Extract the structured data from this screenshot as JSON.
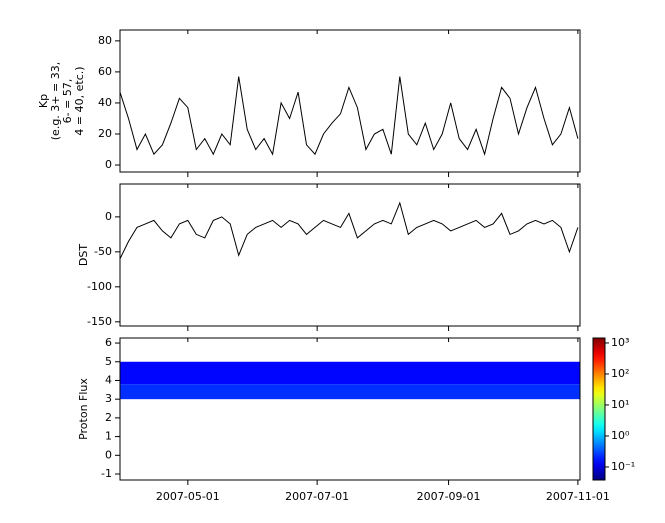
{
  "chart_data": [
    {
      "type": "line",
      "ylabel": [
        "Kp",
        "(e.g. 3+ = 33,",
        "6- = 57,",
        "4 = 40, etc.)"
      ],
      "x": [
        "2007-03-30",
        "2007-04-03",
        "2007-04-07",
        "2007-04-11",
        "2007-04-15",
        "2007-04-19",
        "2007-04-23",
        "2007-04-27",
        "2007-05-01",
        "2007-05-05",
        "2007-05-09",
        "2007-05-13",
        "2007-05-17",
        "2007-05-21",
        "2007-05-25",
        "2007-05-29",
        "2007-06-02",
        "2007-06-06",
        "2007-06-10",
        "2007-06-14",
        "2007-06-18",
        "2007-06-22",
        "2007-06-26",
        "2007-06-30",
        "2007-07-04",
        "2007-07-08",
        "2007-07-12",
        "2007-07-16",
        "2007-07-20",
        "2007-07-24",
        "2007-07-28",
        "2007-08-01",
        "2007-08-05",
        "2007-08-09",
        "2007-08-13",
        "2007-08-17",
        "2007-08-21",
        "2007-08-25",
        "2007-08-29",
        "2007-09-02",
        "2007-09-06",
        "2007-09-10",
        "2007-09-14",
        "2007-09-18",
        "2007-09-22",
        "2007-09-26",
        "2007-09-30",
        "2007-10-04",
        "2007-10-08",
        "2007-10-12",
        "2007-10-16",
        "2007-10-20",
        "2007-10-24",
        "2007-10-28",
        "2007-11-01"
      ],
      "values": [
        47,
        30,
        10,
        20,
        7,
        13,
        27,
        43,
        37,
        10,
        17,
        7,
        20,
        13,
        57,
        23,
        10,
        17,
        7,
        40,
        30,
        47,
        13,
        7,
        20,
        27,
        33,
        50,
        37,
        10,
        20,
        23,
        7,
        57,
        20,
        13,
        27,
        10,
        20,
        40,
        17,
        10,
        23,
        7,
        30,
        50,
        43,
        20,
        37,
        50,
        30,
        13,
        20,
        37,
        17
      ],
      "color": "#000000",
      "xlim": [
        "2007-03-30",
        "2007-11-02"
      ],
      "ylim": [
        -4.5,
        87
      ],
      "yticks": [
        0,
        20,
        40,
        60,
        80
      ]
    },
    {
      "type": "line",
      "ylabel": [
        "DST"
      ],
      "x": [
        "2007-03-30",
        "2007-04-03",
        "2007-04-07",
        "2007-04-11",
        "2007-04-15",
        "2007-04-19",
        "2007-04-23",
        "2007-04-27",
        "2007-05-01",
        "2007-05-05",
        "2007-05-09",
        "2007-05-13",
        "2007-05-17",
        "2007-05-21",
        "2007-05-25",
        "2007-05-29",
        "2007-06-02",
        "2007-06-06",
        "2007-06-10",
        "2007-06-14",
        "2007-06-18",
        "2007-06-22",
        "2007-06-26",
        "2007-06-30",
        "2007-07-04",
        "2007-07-08",
        "2007-07-12",
        "2007-07-16",
        "2007-07-20",
        "2007-07-24",
        "2007-07-28",
        "2007-08-01",
        "2007-08-05",
        "2007-08-09",
        "2007-08-13",
        "2007-08-17",
        "2007-08-21",
        "2007-08-25",
        "2007-08-29",
        "2007-09-02",
        "2007-09-06",
        "2007-09-10",
        "2007-09-14",
        "2007-09-18",
        "2007-09-22",
        "2007-09-26",
        "2007-09-30",
        "2007-10-04",
        "2007-10-08",
        "2007-10-12",
        "2007-10-16",
        "2007-10-20",
        "2007-10-24",
        "2007-10-28",
        "2007-11-01"
      ],
      "values": [
        -60,
        -35,
        -15,
        -10,
        -5,
        -20,
        -30,
        -10,
        -5,
        -25,
        -30,
        -5,
        0,
        -10,
        -55,
        -25,
        -15,
        -10,
        -5,
        -15,
        -5,
        -10,
        -25,
        -15,
        -5,
        -10,
        -15,
        5,
        -30,
        -20,
        -10,
        -5,
        -10,
        20,
        -25,
        -15,
        -10,
        -5,
        -10,
        -20,
        -15,
        -10,
        -5,
        -15,
        -10,
        5,
        -25,
        -20,
        -10,
        -5,
        -10,
        -5,
        -15,
        -50,
        -15
      ],
      "color": "#000000",
      "xlim": [
        "2007-03-30",
        "2007-11-02"
      ],
      "ylim": [
        -156,
        47
      ],
      "yticks": [
        0,
        -50,
        -100,
        -150
      ]
    },
    {
      "type": "heatmap",
      "ylabel": [
        "Proton Flux"
      ],
      "xbins": [
        "2007-03-30",
        "2007-11-02"
      ],
      "ybins": [
        3,
        3.8,
        5
      ],
      "values": [
        [
          0.23
        ],
        [
          0.15
        ]
      ],
      "colormap": "jet",
      "log_color": true,
      "clim": [
        0.038,
        1445
      ],
      "cticks": [
        {
          "value": 0.1,
          "label": "10⁻¹"
        },
        {
          "value": 1,
          "label": "10⁰"
        },
        {
          "value": 10,
          "label": "10¹"
        },
        {
          "value": 100,
          "label": "10²"
        },
        {
          "value": 1000,
          "label": "10³"
        }
      ],
      "xlim": [
        "2007-03-30",
        "2007-11-02"
      ],
      "ylim": [
        -1.32,
        6.27
      ],
      "yticks": [
        -1,
        0,
        1,
        2,
        3,
        4,
        5,
        6
      ],
      "xticks": [
        "2007-05-01",
        "2007-07-01",
        "2007-09-01",
        "2007-11-01"
      ]
    }
  ]
}
